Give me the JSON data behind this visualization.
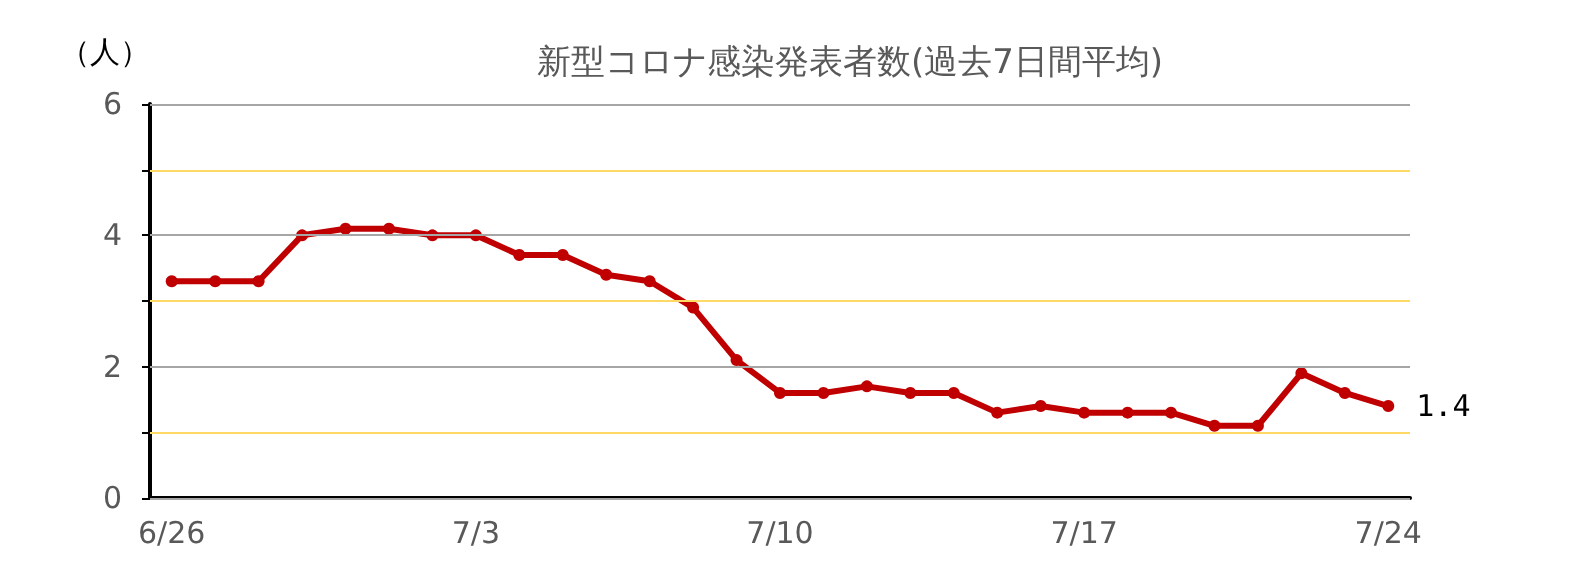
{
  "chart_data": {
    "type": "line",
    "title": "新型コロナ感染発表者数(過去7日間平均)",
    "ylabel": "（人）",
    "categories": [
      "6/26",
      null,
      null,
      null,
      null,
      null,
      null,
      "7/3",
      null,
      null,
      null,
      null,
      null,
      null,
      "7/10",
      null,
      null,
      null,
      null,
      null,
      null,
      "7/17",
      null,
      null,
      null,
      null,
      null,
      null,
      "7/24"
    ],
    "series": [
      {
        "color": "#c00000",
        "values": [
          3.3,
          3.3,
          3.3,
          4.0,
          4.1,
          4.1,
          4.0,
          4.0,
          3.7,
          3.7,
          3.4,
          3.3,
          2.9,
          2.1,
          1.6,
          1.6,
          1.7,
          1.6,
          1.6,
          1.3,
          1.4,
          1.3,
          1.3,
          1.3,
          1.1,
          1.1,
          1.9,
          1.6,
          1.4
        ]
      }
    ],
    "ylim": [
      0,
      6
    ],
    "yticks": [
      0,
      {
        "value": 1,
        "label": null
      },
      2,
      {
        "value": 3,
        "label": null
      },
      4,
      {
        "value": 5,
        "label": null
      },
      6
    ],
    "grid": "y",
    "marker": "circle",
    "line_style": "solid",
    "annotations": [
      {
        "text": "1.4",
        "x": "7/24",
        "y": 1.4
      }
    ]
  }
}
